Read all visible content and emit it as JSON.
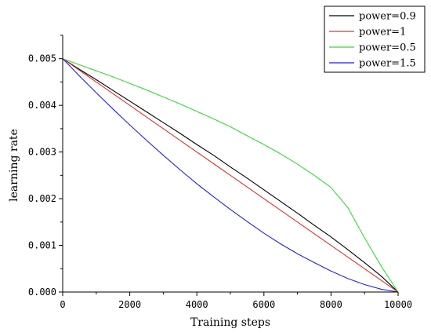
{
  "chart_data": {
    "type": "line",
    "title": "",
    "xlabel": "Training steps",
    "ylabel": "learning rate",
    "xlim": [
      0,
      10000
    ],
    "ylim": [
      0,
      0.0055
    ],
    "x_ticks": [
      0,
      2000,
      4000,
      6000,
      8000,
      10000
    ],
    "x_tick_labels": [
      "0",
      "2000",
      "4000",
      "6000",
      "8000",
      "10000"
    ],
    "y_ticks": [
      0,
      0.001,
      0.002,
      0.003,
      0.004,
      0.005
    ],
    "y_tick_labels": [
      "0.000",
      "0.001",
      "0.002",
      "0.003",
      "0.004",
      "0.005"
    ],
    "grid": false,
    "legend_position": "top-right",
    "x": [
      0,
      500,
      1000,
      1500,
      2000,
      2500,
      3000,
      3500,
      4000,
      4500,
      5000,
      5500,
      6000,
      6500,
      7000,
      7500,
      8000,
      8500,
      9000,
      9500,
      10000
    ],
    "series": [
      {
        "name": "power=0.9",
        "color": "#000000",
        "values": [
          0.005,
          0.00477,
          0.00455,
          0.00432,
          0.00409,
          0.00386,
          0.00363,
          0.0034,
          0.00316,
          0.00293,
          0.00268,
          0.00244,
          0.00219,
          0.00194,
          0.00169,
          0.00143,
          0.00118,
          0.00091,
          0.00063,
          0.00034,
          0.0
        ]
      },
      {
        "name": "power=1",
        "color": "#e03030",
        "values": [
          0.005,
          0.00475,
          0.0045,
          0.00425,
          0.004,
          0.00375,
          0.0035,
          0.00325,
          0.003,
          0.00275,
          0.0025,
          0.00225,
          0.002,
          0.00175,
          0.0015,
          0.00125,
          0.001,
          0.00075,
          0.0005,
          0.00025,
          0.0
        ]
      },
      {
        "name": "power=0.5",
        "color": "#33dd33",
        "values": [
          0.005,
          0.00487,
          0.00474,
          0.00461,
          0.00447,
          0.00433,
          0.00418,
          0.00403,
          0.00387,
          0.00371,
          0.00354,
          0.00335,
          0.00316,
          0.00296,
          0.00274,
          0.0025,
          0.00224,
          0.00181,
          0.00116,
          0.00055,
          0.0
        ]
      },
      {
        "name": "power=1.5",
        "color": "#2222dd",
        "values": [
          0.005,
          0.00463,
          0.00427,
          0.00392,
          0.00358,
          0.00325,
          0.00293,
          0.00262,
          0.00232,
          0.00204,
          0.00177,
          0.00151,
          0.00126,
          0.00103,
          0.00082,
          0.00063,
          0.00045,
          0.00029,
          0.00016,
          6e-05,
          0.0
        ]
      }
    ]
  }
}
